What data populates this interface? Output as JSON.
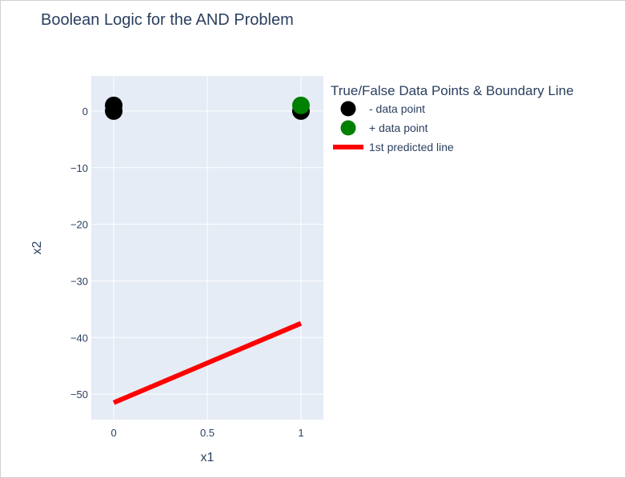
{
  "chart_data": {
    "type": "scatter",
    "title": "Boolean Logic for the AND Problem",
    "xlabel": "x1",
    "ylabel": "x2",
    "xlim": [
      -0.12,
      1.12
    ],
    "ylim": [
      -54.5,
      6.2
    ],
    "x_ticks": [
      0,
      0.5,
      1
    ],
    "x_tick_labels": [
      "0",
      "0.5",
      "1"
    ],
    "y_ticks": [
      0,
      -10,
      -20,
      -30,
      -40,
      -50
    ],
    "y_tick_labels": [
      "0",
      "−10",
      "−20",
      "−30",
      "−40",
      "−50"
    ],
    "grid": true,
    "legend": {
      "title": "True/False Data Points & Boundary Line",
      "placement": "right"
    },
    "series": [
      {
        "name": "- data point",
        "mode": "markers",
        "color": "#000000",
        "points": [
          [
            0,
            0
          ],
          [
            0,
            1
          ],
          [
            1,
            0
          ]
        ]
      },
      {
        "name": "+ data point",
        "mode": "markers",
        "color": "#008000",
        "points": [
          [
            1,
            1
          ]
        ]
      },
      {
        "name": "1st predicted line",
        "mode": "line",
        "color": "#ff0000",
        "points": [
          [
            0,
            -51.5
          ],
          [
            1,
            -37.5
          ]
        ]
      }
    ]
  }
}
